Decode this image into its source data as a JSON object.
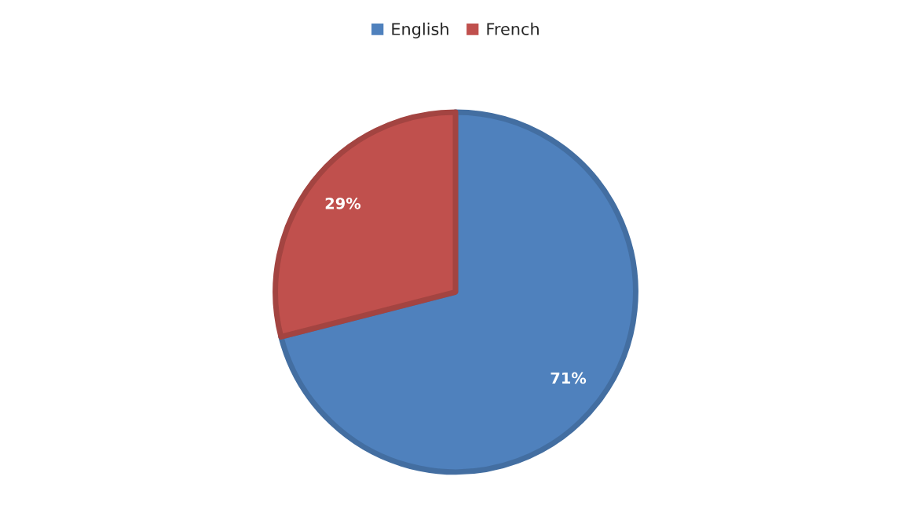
{
  "chart_data": {
    "type": "pie",
    "categories": [
      "English",
      "French"
    ],
    "values": [
      71,
      29
    ],
    "colors": [
      "#4f81bd",
      "#c0504d"
    ],
    "value_labels": [
      "71%",
      "29%"
    ],
    "legend": "top"
  }
}
